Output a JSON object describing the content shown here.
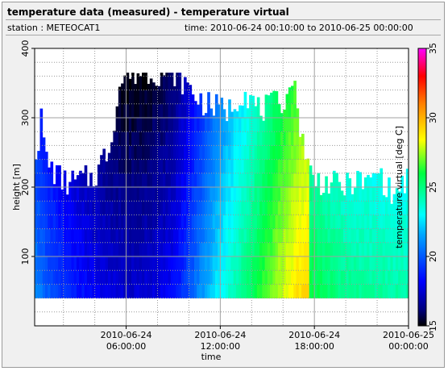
{
  "header": {
    "title": "temperature data (measured) - temperature virtual",
    "station": "station : METEOCAT1",
    "time_range": "time: 2010-06-24 00:10:00 to 2010-06-25 00:00:00"
  },
  "chart_data": {
    "type": "heatmap",
    "xlabel": "time",
    "ylabel": "height [m]",
    "colorbar_label": "temperature virtual [deg C]",
    "x_start_hour": 0.1667,
    "x_end_hour": 24,
    "x_step_hours": 0.1667,
    "ylim": [
      0,
      400
    ],
    "y_ticks": [
      100,
      200,
      300,
      400
    ],
    "x_ticks": [
      {
        "hour": 6,
        "line1": "2010-06-24",
        "line2": "06:00:00"
      },
      {
        "hour": 12,
        "line1": "2010-06-24",
        "line2": "12:00:00"
      },
      {
        "hour": 18,
        "line1": "2010-06-24",
        "line2": "18:00:00"
      },
      {
        "hour": 24,
        "line1": "2010-06-25",
        "line2": "00:00:00"
      }
    ],
    "colorbar_range": [
      15,
      35
    ],
    "colorbar_ticks": [
      15,
      20,
      25,
      30,
      35
    ],
    "grid": true,
    "min_height": 40,
    "max_height_profile": [
      {
        "hour": 0.17,
        "m": 250
      },
      {
        "hour": 0.4,
        "m": 265
      },
      {
        "hour": 0.6,
        "m": 300
      },
      {
        "hour": 0.9,
        "m": 240
      },
      {
        "hour": 1.3,
        "m": 225
      },
      {
        "hour": 1.7,
        "m": 215
      },
      {
        "hour": 2.2,
        "m": 205
      },
      {
        "hour": 3.0,
        "m": 210
      },
      {
        "hour": 4.0,
        "m": 215
      },
      {
        "hour": 4.5,
        "m": 240
      },
      {
        "hour": 5.0,
        "m": 260
      },
      {
        "hour": 5.5,
        "m": 340
      },
      {
        "hour": 6.0,
        "m": 365
      },
      {
        "hour": 9.0,
        "m": 365
      },
      {
        "hour": 9.5,
        "m": 355
      },
      {
        "hour": 10.5,
        "m": 330
      },
      {
        "hour": 11.0,
        "m": 320
      },
      {
        "hour": 12.5,
        "m": 310
      },
      {
        "hour": 13.5,
        "m": 340
      },
      {
        "hour": 14.5,
        "m": 310
      },
      {
        "hour": 15.5,
        "m": 320
      },
      {
        "hour": 16.3,
        "m": 330
      },
      {
        "hour": 16.6,
        "m": 365
      },
      {
        "hour": 16.9,
        "m": 310
      },
      {
        "hour": 17.2,
        "m": 280
      },
      {
        "hour": 17.6,
        "m": 230
      },
      {
        "hour": 18.0,
        "m": 210
      },
      {
        "hour": 19.0,
        "m": 205
      },
      {
        "hour": 20.0,
        "m": 200
      },
      {
        "hour": 20.5,
        "m": 210
      },
      {
        "hour": 21.5,
        "m": 205
      },
      {
        "hour": 22.0,
        "m": 225
      },
      {
        "hour": 22.5,
        "m": 205
      },
      {
        "hour": 23.0,
        "m": 185
      },
      {
        "hour": 23.5,
        "m": 200
      },
      {
        "hour": 24.0,
        "m": 215
      }
    ],
    "surface_temperature_profile": [
      {
        "hour": 0.17,
        "degC": 21.0
      },
      {
        "hour": 1.0,
        "degC": 20.0
      },
      {
        "hour": 2.0,
        "degC": 19.2
      },
      {
        "hour": 3.0,
        "degC": 18.6
      },
      {
        "hour": 4.0,
        "degC": 18.1
      },
      {
        "hour": 5.0,
        "degC": 17.7
      },
      {
        "hour": 6.0,
        "degC": 17.4
      },
      {
        "hour": 7.0,
        "degC": 17.5
      },
      {
        "hour": 8.0,
        "degC": 17.8
      },
      {
        "hour": 9.0,
        "degC": 18.3
      },
      {
        "hour": 10.0,
        "degC": 19.8
      },
      {
        "hour": 11.0,
        "degC": 21.5
      },
      {
        "hour": 12.0,
        "degC": 23.0
      },
      {
        "hour": 13.0,
        "degC": 24.3
      },
      {
        "hour": 14.0,
        "degC": 25.5
      },
      {
        "hour": 15.0,
        "degC": 26.8
      },
      {
        "hour": 16.0,
        "degC": 28.0
      },
      {
        "hour": 17.0,
        "degC": 29.0
      },
      {
        "hour": 17.6,
        "degC": 29.3
      },
      {
        "hour": 17.7,
        "degC": 26.0
      },
      {
        "hour": 18.5,
        "degC": 25.5
      },
      {
        "hour": 20.0,
        "degC": 24.8
      },
      {
        "hour": 22.0,
        "degC": 24.5
      },
      {
        "hour": 24.0,
        "degC": 24.3
      }
    ],
    "temperature_change_top_degC": -2.5
  }
}
